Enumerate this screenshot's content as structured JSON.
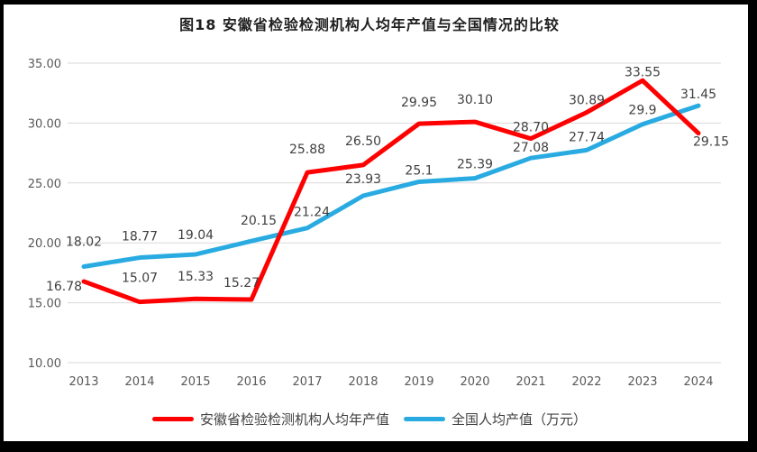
{
  "title": "图18 安徽省检验检测机构人均年产值与全国情况的比较",
  "frame_color": "#000000",
  "chart_data": {
    "type": "line",
    "x": [
      "2013",
      "2014",
      "2015",
      "2016",
      "2017",
      "2018",
      "2019",
      "2020",
      "2021",
      "2022",
      "2023",
      "2024"
    ],
    "series": [
      {
        "name": "全国人均产值（万元）",
        "color": "#29ABE2",
        "values": [
          18.02,
          18.77,
          19.04,
          20.15,
          21.24,
          23.93,
          25.1,
          25.39,
          27.08,
          27.74,
          29.9,
          31.45
        ],
        "labels": [
          "18.02",
          "18.77",
          "19.04",
          "20.15",
          "21.24",
          "23.93",
          "25.1",
          "25.39",
          "27.08",
          "27.74",
          "29.9",
          "31.45"
        ]
      },
      {
        "name": "安徽省检验检测机构人均年产值",
        "color": "#FF0000",
        "values": [
          16.78,
          15.07,
          15.33,
          15.27,
          25.88,
          26.5,
          29.95,
          30.1,
          28.7,
          30.89,
          33.55,
          29.15
        ],
        "labels": [
          "16.78",
          "15.07",
          "15.33",
          "15.27",
          "25.88",
          "26.50",
          "29.95",
          "30.10",
          "28.70",
          "30.89",
          "33.55",
          "29.15"
        ]
      }
    ],
    "ylim": [
      10,
      35
    ],
    "yticks": [
      "10.00",
      "15.00",
      "20.00",
      "25.00",
      "30.00",
      "35.00"
    ],
    "grid": "horizontal",
    "gridline_color": "#D9D9D9",
    "axis_text_color": "#595959",
    "data_label_color": "#404040",
    "legend_position": "bottom",
    "legend": [
      {
        "label": "安徽省检验检测机构人均年产值",
        "color": "#FF0000"
      },
      {
        "label": "全国人均产值（万元）",
        "color": "#29ABE2"
      }
    ]
  }
}
